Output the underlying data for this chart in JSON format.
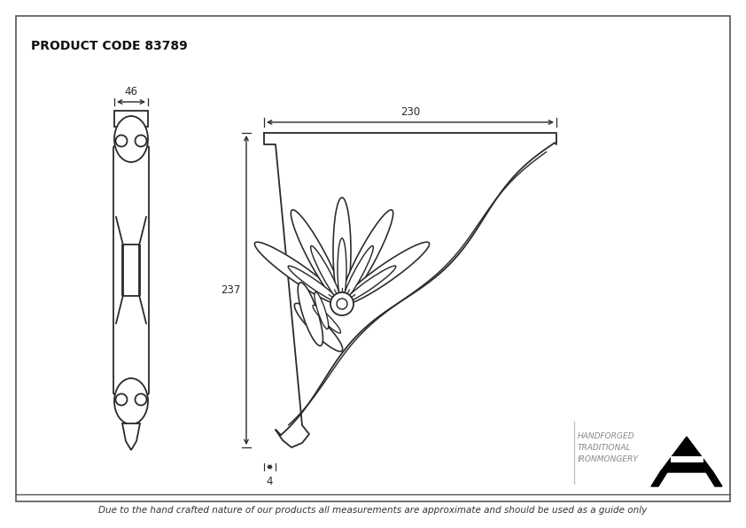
{
  "title": "PRODUCT CODE 83789",
  "footer": "Due to the hand crafted nature of our products all measurements are approximate and should be used as a guide only",
  "brand_line1": "HANDFORGED",
  "brand_line2": "TRADITIONAL",
  "brand_line3": "IRONMONGERY",
  "dim_width": "230",
  "dim_height": "237",
  "dim_depth": "46",
  "dim_thickness": "4",
  "bg_color": "#ffffff",
  "line_color": "#2a2a2a",
  "border_color": "#555555"
}
